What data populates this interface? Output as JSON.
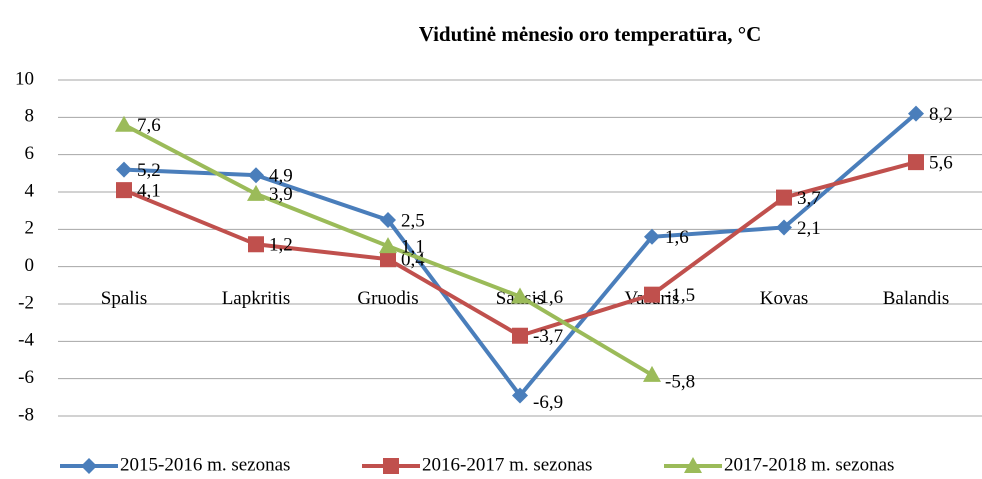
{
  "chart_data": {
    "type": "line",
    "title": "Vidutinė mėnesio oro temperatūra, °C",
    "categories": [
      "Spalis",
      "Lapkritis",
      "Gruodis",
      "Sausis",
      "Vasaris",
      "Kovas",
      "Balandis"
    ],
    "series": [
      {
        "name": "2015-2016 m. sezonas",
        "color": "#4a7ebb",
        "marker": "diamond",
        "values": [
          5.2,
          4.9,
          2.5,
          -6.9,
          1.6,
          2.1,
          8.2
        ],
        "value_labels": [
          "5,2",
          "4,9",
          "2,5",
          "-6,9",
          "1,6",
          "2,1",
          "8,2"
        ]
      },
      {
        "name": "2016-2017 m. sezonas",
        "color": "#c0504d",
        "marker": "square",
        "values": [
          4.1,
          1.2,
          0.4,
          -3.7,
          -1.5,
          3.7,
          5.6
        ],
        "value_labels": [
          "4,1",
          "1,2",
          "0,4",
          "-3,7",
          "-1,5",
          "3,7",
          "5,6"
        ]
      },
      {
        "name": "2017-2018 m. sezonas",
        "color": "#9bbb59",
        "marker": "triangle",
        "values": [
          7.6,
          3.9,
          1.1,
          -1.6,
          -5.8,
          null,
          null
        ],
        "value_labels": [
          "7,6",
          "3,9",
          "1,1",
          "-1,6",
          "-5,8",
          null,
          null
        ]
      }
    ],
    "ylim": [
      -8,
      10
    ],
    "yticks": [
      -8,
      -6,
      -4,
      -2,
      0,
      2,
      4,
      6,
      8,
      10
    ],
    "grid": true,
    "legend": "bottom"
  }
}
